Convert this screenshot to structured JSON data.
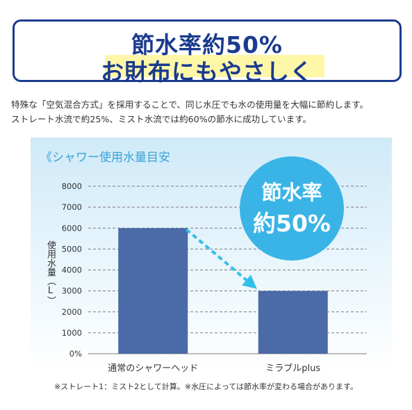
{
  "banner": {
    "line1": "節水率約50%",
    "line2": "お財布にもやさしく"
  },
  "description": {
    "line1": "特殊な「空気混合方式」を採用することで、同じ水圧でも水の使用量を大幅に節約します。",
    "line2": "ストレート水流で約25%、ミスト水流では約60%の節水に成功しています。"
  },
  "badge": {
    "line1": "節水率",
    "line2": "約50%"
  },
  "footnote": "※ストレート1：ミスト2として計算。※水圧によっては節水率が変わる場合があります。",
  "colors": {
    "banner_text": "#1a3a8e",
    "bar": "#4a6aa8",
    "arrow": "#33c0e8",
    "badge_bg": "#3ab4e6",
    "title": "#3aa3d8",
    "grid": "#7a7a7a"
  },
  "chart_data": {
    "type": "bar",
    "title": "《シャワー使用水量目安",
    "ylabel": "使用水量（L）",
    "categories": [
      "通常のシャワーヘッド",
      "ミラブルplus"
    ],
    "values": [
      6000,
      3000
    ],
    "ylim": [
      0,
      8000
    ],
    "yticks": [
      0,
      1000,
      2000,
      3000,
      4000,
      5000,
      6000,
      7000,
      8000
    ],
    "ytick_labels": [
      "0%",
      "1000",
      "2000",
      "3000",
      "4000",
      "5000",
      "6000",
      "7000",
      "8000"
    ],
    "grid": true,
    "annotation": "arrow from first bar to second bar"
  }
}
